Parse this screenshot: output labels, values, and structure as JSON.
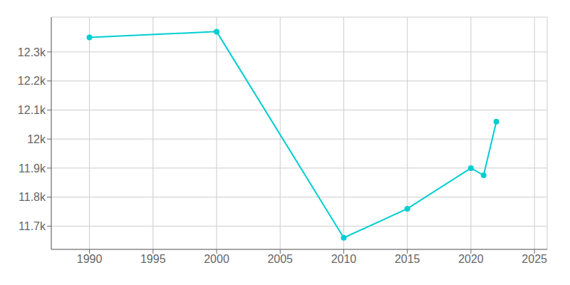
{
  "chart_data": {
    "type": "line",
    "x": [
      1990,
      2000,
      2010,
      2015,
      2020,
      2021,
      2022
    ],
    "values": [
      12350,
      12370,
      11660,
      11760,
      11900,
      11875,
      12060
    ],
    "color": "#00CED1",
    "marker": "circle",
    "line_style": "solid",
    "xlim": [
      1987,
      2026
    ],
    "ylim": [
      11620,
      12420
    ],
    "xticks": [
      1990,
      1995,
      2000,
      2005,
      2010,
      2015,
      2020,
      2025
    ],
    "yticks": [
      {
        "value": 11700,
        "label": "11.7k"
      },
      {
        "value": 11800,
        "label": "11.8k"
      },
      {
        "value": 11900,
        "label": "11.9k"
      },
      {
        "value": 12000,
        "label": "12k"
      },
      {
        "value": 12100,
        "label": "12.1k"
      },
      {
        "value": 12200,
        "label": "12.2k"
      },
      {
        "value": 12300,
        "label": "12.3k"
      }
    ],
    "grid": true
  }
}
